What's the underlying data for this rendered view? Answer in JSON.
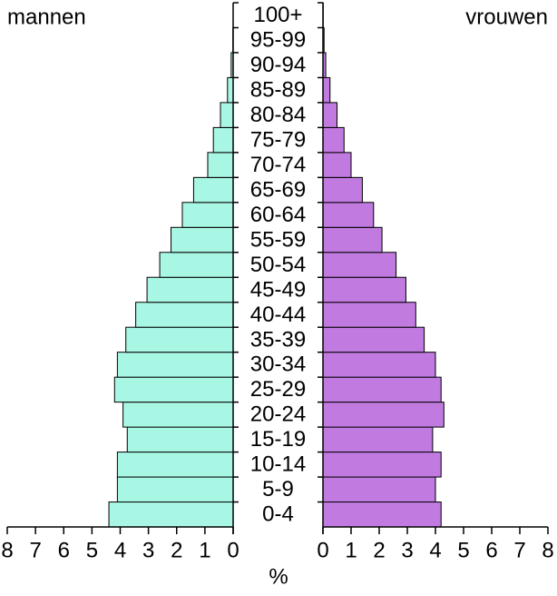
{
  "chart_data": {
    "type": "population-pyramid",
    "categories": [
      "0-4",
      "5-9",
      "10-14",
      "15-19",
      "20-24",
      "25-29",
      "30-34",
      "35-39",
      "40-44",
      "45-49",
      "50-54",
      "55-59",
      "60-64",
      "65-69",
      "70-74",
      "75-79",
      "80-84",
      "85-89",
      "90-94",
      "95-99",
      "100+"
    ],
    "series": [
      {
        "name": "mannen",
        "color": "#a8f6e4",
        "values": [
          4.4,
          4.1,
          4.1,
          3.75,
          3.9,
          4.2,
          4.1,
          3.8,
          3.45,
          3.05,
          2.6,
          2.2,
          1.8,
          1.4,
          0.9,
          0.7,
          0.45,
          0.2,
          0.07,
          0.01,
          0
        ]
      },
      {
        "name": "vrouwen",
        "color": "#c07ae0",
        "values": [
          4.2,
          4.0,
          4.2,
          3.9,
          4.3,
          4.2,
          4.0,
          3.6,
          3.3,
          2.95,
          2.6,
          2.1,
          1.8,
          1.4,
          1.0,
          0.75,
          0.5,
          0.25,
          0.1,
          0.04,
          0.01
        ]
      }
    ],
    "xlabel": "%",
    "xlim": [
      0,
      8
    ],
    "xticks": [
      0,
      1,
      2,
      3,
      4,
      5,
      6,
      7,
      8
    ]
  }
}
